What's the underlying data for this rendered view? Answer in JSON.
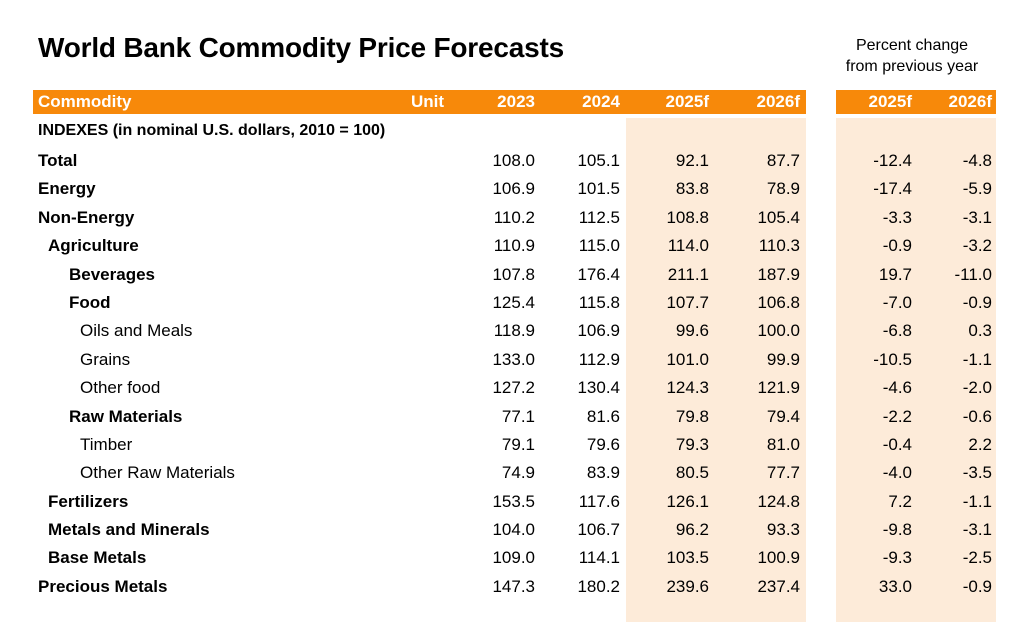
{
  "title": "World Bank Commodity Price Forecasts",
  "pct_header": {
    "line1": "Percent change",
    "line2": "from previous year"
  },
  "columns": {
    "commodity": "Commodity",
    "unit": "Unit",
    "y2023": "2023",
    "y2024": "2024",
    "y2025f": "2025f",
    "y2026f": "2026f",
    "pct_2025f": "2025f",
    "pct_2026f": "2026f"
  },
  "section_label": "INDEXES (in nominal U.S. dollars, 2010 = 100)",
  "colors": {
    "header_bg": "#f7890a",
    "header_text": "#ffffff",
    "forecast_shade": "#fdebd9"
  },
  "rows": [
    {
      "name": "Total",
      "level": 0,
      "bold": true,
      "v2023": "108.0",
      "v2024": "105.1",
      "v2025f": "92.1",
      "v2026f": "87.7",
      "p2025f": "-12.4",
      "p2026f": "-4.8"
    },
    {
      "name": "Energy",
      "level": 0,
      "bold": true,
      "v2023": "106.9",
      "v2024": "101.5",
      "v2025f": "83.8",
      "v2026f": "78.9",
      "p2025f": "-17.4",
      "p2026f": "-5.9"
    },
    {
      "name": "Non-Energy",
      "level": 0,
      "bold": true,
      "v2023": "110.2",
      "v2024": "112.5",
      "v2025f": "108.8",
      "v2026f": "105.4",
      "p2025f": "-3.3",
      "p2026f": "-3.1"
    },
    {
      "name": "Agriculture",
      "level": 1,
      "bold": true,
      "v2023": "110.9",
      "v2024": "115.0",
      "v2025f": "114.0",
      "v2026f": "110.3",
      "p2025f": "-0.9",
      "p2026f": "-3.2"
    },
    {
      "name": "Beverages",
      "level": 2,
      "bold": true,
      "v2023": "107.8",
      "v2024": "176.4",
      "v2025f": "211.1",
      "v2026f": "187.9",
      "p2025f": "19.7",
      "p2026f": "-11.0"
    },
    {
      "name": "Food",
      "level": 2,
      "bold": true,
      "v2023": "125.4",
      "v2024": "115.8",
      "v2025f": "107.7",
      "v2026f": "106.8",
      "p2025f": "-7.0",
      "p2026f": "-0.9"
    },
    {
      "name": "Oils and Meals",
      "level": 3,
      "bold": false,
      "v2023": "118.9",
      "v2024": "106.9",
      "v2025f": "99.6",
      "v2026f": "100.0",
      "p2025f": "-6.8",
      "p2026f": "0.3"
    },
    {
      "name": "Grains",
      "level": 3,
      "bold": false,
      "v2023": "133.0",
      "v2024": "112.9",
      "v2025f": "101.0",
      "v2026f": "99.9",
      "p2025f": "-10.5",
      "p2026f": "-1.1"
    },
    {
      "name": "Other food",
      "level": 3,
      "bold": false,
      "v2023": "127.2",
      "v2024": "130.4",
      "v2025f": "124.3",
      "v2026f": "121.9",
      "p2025f": "-4.6",
      "p2026f": "-2.0"
    },
    {
      "name": "Raw Materials",
      "level": 2,
      "bold": true,
      "v2023": "77.1",
      "v2024": "81.6",
      "v2025f": "79.8",
      "v2026f": "79.4",
      "p2025f": "-2.2",
      "p2026f": "-0.6"
    },
    {
      "name": "Timber",
      "level": 3,
      "bold": false,
      "v2023": "79.1",
      "v2024": "79.6",
      "v2025f": "79.3",
      "v2026f": "81.0",
      "p2025f": "-0.4",
      "p2026f": "2.2"
    },
    {
      "name": "Other Raw Materials",
      "level": 3,
      "bold": false,
      "v2023": "74.9",
      "v2024": "83.9",
      "v2025f": "80.5",
      "v2026f": "77.7",
      "p2025f": "-4.0",
      "p2026f": "-3.5"
    },
    {
      "name": "Fertilizers",
      "level": 1,
      "bold": true,
      "v2023": "153.5",
      "v2024": "117.6",
      "v2025f": "126.1",
      "v2026f": "124.8",
      "p2025f": "7.2",
      "p2026f": "-1.1"
    },
    {
      "name": "Metals and Minerals",
      "level": 1,
      "bold": true,
      "v2023": "104.0",
      "v2024": "106.7",
      "v2025f": "96.2",
      "v2026f": "93.3",
      "p2025f": "-9.8",
      "p2026f": "-3.1"
    },
    {
      "name": "Base Metals",
      "level": 1,
      "bold": true,
      "v2023": "109.0",
      "v2024": "114.1",
      "v2025f": "103.5",
      "v2026f": "100.9",
      "p2025f": "-9.3",
      "p2026f": "-2.5"
    },
    {
      "name": "Precious Metals",
      "level": 0,
      "bold": true,
      "v2023": "147.3",
      "v2024": "180.2",
      "v2025f": "239.6",
      "v2026f": "237.4",
      "p2025f": "33.0",
      "p2026f": "-0.9"
    }
  ]
}
